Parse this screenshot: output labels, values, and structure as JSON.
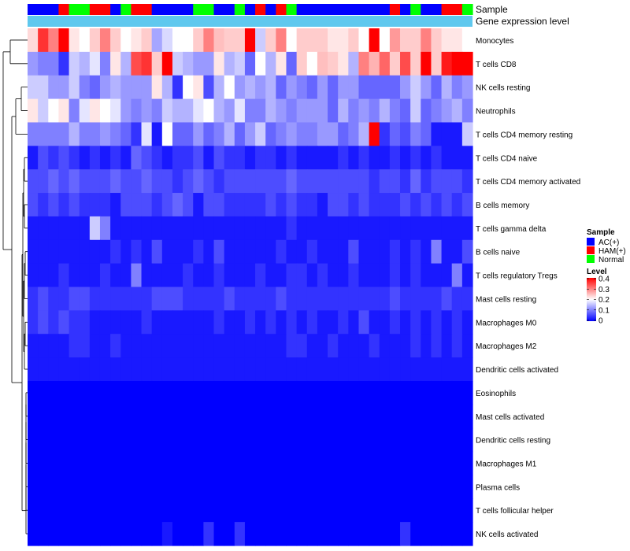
{
  "chart_data": {
    "type": "heatmap",
    "annotation_tracks": [
      "Sample",
      "Gene expression level"
    ],
    "rows": [
      "Monocytes",
      "T cells CD8",
      "NK cells resting",
      "Neutrophils",
      "T cells CD4 memory resting",
      "T cells CD4 naive",
      "T cells CD4 memory activated",
      "B cells memory",
      "T cells gamma delta",
      "B cells naive",
      "T cells regulatory  Tregs",
      "Mast cells resting",
      "Macrophages M0",
      "Macrophages M2",
      "Dendritic cells activated",
      "Eosinophils",
      "Mast cells activated",
      "Dendritic cells resting",
      "Macrophages M1",
      "Plasma cells",
      "T cells follicular helper",
      "NK cells activated"
    ],
    "sample_groups": [
      "AC",
      "AC",
      "AC",
      "HAM",
      "Normal",
      "Normal",
      "HAM",
      "HAM",
      "AC",
      "Normal",
      "HAM",
      "HAM",
      "AC",
      "AC",
      "AC",
      "AC",
      "Normal",
      "Normal",
      "AC",
      "AC",
      "Normal",
      "AC",
      "HAM",
      "AC",
      "HAM",
      "Normal",
      "AC",
      "AC",
      "AC",
      "AC",
      "AC",
      "AC",
      "AC",
      "AC",
      "AC",
      "HAM",
      "AC",
      "Normal",
      "AC",
      "AC",
      "HAM",
      "HAM",
      "Normal"
    ],
    "values": [
      [
        0.23,
        0.36,
        0.3,
        0.4,
        0.22,
        0.2,
        0.24,
        0.3,
        0.24,
        0.2,
        0.22,
        0.24,
        0.13,
        0.17,
        0.2,
        0.2,
        0.24,
        0.3,
        0.25,
        0.24,
        0.24,
        0.4,
        0.16,
        0.24,
        0.3,
        0.2,
        0.24,
        0.24,
        0.24,
        0.22,
        0.22,
        0.24,
        0.2,
        0.4,
        0.2,
        0.28,
        0.24,
        0.24,
        0.3,
        0.24,
        0.22,
        0.22,
        0.2
      ],
      [
        0.12,
        0.1,
        0.1,
        0.04,
        0.16,
        0.14,
        0.18,
        0.1,
        0.22,
        0.14,
        0.34,
        0.36,
        0.24,
        0.4,
        0.16,
        0.14,
        0.12,
        0.12,
        0.22,
        0.14,
        0.16,
        0.08,
        0.2,
        0.14,
        0.22,
        0.08,
        0.24,
        0.2,
        0.25,
        0.24,
        0.22,
        0.14,
        0.3,
        0.26,
        0.32,
        0.24,
        0.34,
        0.24,
        0.4,
        0.24,
        0.38,
        0.4,
        0.4
      ],
      [
        0.16,
        0.16,
        0.12,
        0.12,
        0.16,
        0.1,
        0.08,
        0.12,
        0.14,
        0.12,
        0.12,
        0.12,
        0.22,
        0.14,
        0.04,
        0.2,
        0.22,
        0.06,
        0.14,
        0.2,
        0.12,
        0.14,
        0.12,
        0.14,
        0.08,
        0.12,
        0.1,
        0.08,
        0.12,
        0.08,
        0.12,
        0.12,
        0.08,
        0.08,
        0.08,
        0.08,
        0.12,
        0.16,
        0.12,
        0.08,
        0.14,
        0.1,
        0.12
      ],
      [
        0.22,
        0.16,
        0.2,
        0.22,
        0.1,
        0.18,
        0.22,
        0.2,
        0.18,
        0.12,
        0.1,
        0.12,
        0.1,
        0.16,
        0.14,
        0.14,
        0.18,
        0.2,
        0.14,
        0.12,
        0.18,
        0.1,
        0.1,
        0.14,
        0.12,
        0.1,
        0.12,
        0.12,
        0.12,
        0.08,
        0.14,
        0.1,
        0.12,
        0.1,
        0.14,
        0.1,
        0.08,
        0.16,
        0.08,
        0.1,
        0.12,
        0.14,
        0.1
      ],
      [
        0.1,
        0.1,
        0.1,
        0.1,
        0.14,
        0.1,
        0.1,
        0.12,
        0.1,
        0.08,
        0.04,
        0.18,
        0.02,
        0.2,
        0.08,
        0.08,
        0.12,
        0.08,
        0.1,
        0.14,
        0.08,
        0.12,
        0.16,
        0.08,
        0.1,
        0.12,
        0.1,
        0.1,
        0.12,
        0.12,
        0.08,
        0.1,
        0.14,
        0.4,
        0.04,
        0.08,
        0.06,
        0.1,
        0.08,
        0.02,
        0.02,
        0.02,
        0.16
      ],
      [
        0.02,
        0.06,
        0.04,
        0.06,
        0.04,
        0.02,
        0.04,
        0.02,
        0.04,
        0.02,
        0.08,
        0.06,
        0.04,
        0.02,
        0.04,
        0.04,
        0.06,
        0.02,
        0.06,
        0.04,
        0.04,
        0.02,
        0.04,
        0.04,
        0.02,
        0.04,
        0.02,
        0.02,
        0.02,
        0.02,
        0.04,
        0.02,
        0.04,
        0.02,
        0.02,
        0.04,
        0.02,
        0.04,
        0.02,
        0.04,
        0.02,
        0.02,
        0.02
      ],
      [
        0.06,
        0.06,
        0.08,
        0.06,
        0.08,
        0.06,
        0.06,
        0.06,
        0.08,
        0.06,
        0.06,
        0.08,
        0.06,
        0.06,
        0.04,
        0.06,
        0.08,
        0.06,
        0.04,
        0.06,
        0.06,
        0.06,
        0.06,
        0.06,
        0.06,
        0.08,
        0.06,
        0.06,
        0.06,
        0.06,
        0.06,
        0.06,
        0.06,
        0.04,
        0.06,
        0.06,
        0.04,
        0.08,
        0.04,
        0.06,
        0.06,
        0.06,
        0.04
      ],
      [
        0.06,
        0.04,
        0.06,
        0.04,
        0.06,
        0.04,
        0.04,
        0.04,
        0.02,
        0.06,
        0.06,
        0.06,
        0.04,
        0.06,
        0.08,
        0.06,
        0.02,
        0.06,
        0.06,
        0.04,
        0.04,
        0.04,
        0.04,
        0.06,
        0.04,
        0.06,
        0.04,
        0.04,
        0.02,
        0.06,
        0.06,
        0.04,
        0.06,
        0.04,
        0.04,
        0.04,
        0.06,
        0.04,
        0.06,
        0.04,
        0.06,
        0.04,
        0.06
      ],
      [
        0.02,
        0.02,
        0.02,
        0.02,
        0.02,
        0.02,
        0.16,
        0.1,
        0.02,
        0.02,
        0.02,
        0.02,
        0.02,
        0.02,
        0.02,
        0.02,
        0.02,
        0.02,
        0.02,
        0.02,
        0.02,
        0.02,
        0.02,
        0.02,
        0.02,
        0.04,
        0.02,
        0.02,
        0.02,
        0.02,
        0.02,
        0.02,
        0.02,
        0.02,
        0.02,
        0.02,
        0.02,
        0.02,
        0.02,
        0.02,
        0.02,
        0.02,
        0.02
      ],
      [
        0.02,
        0.02,
        0.02,
        0.02,
        0.02,
        0.02,
        0.02,
        0.02,
        0.04,
        0.02,
        0.04,
        0.02,
        0.06,
        0.02,
        0.02,
        0.02,
        0.04,
        0.02,
        0.06,
        0.02,
        0.02,
        0.02,
        0.02,
        0.02,
        0.04,
        0.02,
        0.02,
        0.04,
        0.02,
        0.02,
        0.02,
        0.06,
        0.02,
        0.02,
        0.02,
        0.04,
        0.02,
        0.04,
        0.02,
        0.1,
        0.02,
        0.02,
        0.06
      ],
      [
        0.02,
        0.02,
        0.02,
        0.04,
        0.02,
        0.02,
        0.02,
        0.04,
        0.02,
        0.02,
        0.1,
        0.02,
        0.02,
        0.02,
        0.02,
        0.04,
        0.02,
        0.02,
        0.04,
        0.02,
        0.02,
        0.02,
        0.04,
        0.02,
        0.02,
        0.04,
        0.04,
        0.02,
        0.04,
        0.02,
        0.02,
        0.04,
        0.02,
        0.02,
        0.02,
        0.04,
        0.02,
        0.04,
        0.02,
        0.02,
        0.02,
        0.1,
        0.02
      ],
      [
        0.04,
        0.06,
        0.04,
        0.04,
        0.06,
        0.06,
        0.04,
        0.04,
        0.04,
        0.04,
        0.04,
        0.04,
        0.06,
        0.06,
        0.06,
        0.04,
        0.04,
        0.04,
        0.04,
        0.06,
        0.04,
        0.04,
        0.04,
        0.04,
        0.06,
        0.04,
        0.04,
        0.04,
        0.04,
        0.04,
        0.04,
        0.04,
        0.04,
        0.04,
        0.04,
        0.06,
        0.04,
        0.04,
        0.04,
        0.04,
        0.06,
        0.04,
        0.04
      ],
      [
        0.04,
        0.06,
        0.04,
        0.06,
        0.04,
        0.04,
        0.02,
        0.02,
        0.02,
        0.02,
        0.02,
        0.04,
        0.02,
        0.02,
        0.02,
        0.02,
        0.02,
        0.02,
        0.04,
        0.02,
        0.02,
        0.04,
        0.02,
        0.04,
        0.02,
        0.04,
        0.02,
        0.04,
        0.02,
        0.02,
        0.04,
        0.02,
        0.06,
        0.02,
        0.02,
        0.04,
        0.02,
        0.04,
        0.02,
        0.04,
        0.02,
        0.04,
        0.02
      ],
      [
        0.02,
        0.02,
        0.02,
        0.02,
        0.04,
        0.04,
        0.02,
        0.02,
        0.04,
        0.02,
        0.02,
        0.02,
        0.02,
        0.02,
        0.02,
        0.02,
        0.02,
        0.02,
        0.02,
        0.02,
        0.02,
        0.02,
        0.02,
        0.02,
        0.02,
        0.04,
        0.04,
        0.02,
        0.02,
        0.04,
        0.02,
        0.02,
        0.02,
        0.04,
        0.02,
        0.02,
        0.02,
        0.04,
        0.02,
        0.04,
        0.02,
        0.04,
        0.02
      ],
      [
        0.02,
        0.02,
        0.02,
        0.02,
        0.02,
        0.02,
        0.02,
        0.02,
        0.02,
        0.02,
        0.02,
        0.02,
        0.02,
        0.02,
        0.02,
        0.02,
        0.02,
        0.02,
        0.02,
        0.02,
        0.02,
        0.02,
        0.02,
        0.02,
        0.02,
        0.02,
        0.02,
        0.02,
        0.02,
        0.02,
        0.02,
        0.02,
        0.02,
        0.02,
        0.02,
        0.02,
        0.02,
        0.02,
        0.02,
        0.02,
        0.02,
        0.02,
        0.02
      ],
      [
        0,
        0,
        0,
        0,
        0,
        0,
        0,
        0,
        0,
        0,
        0,
        0,
        0,
        0,
        0,
        0,
        0,
        0,
        0,
        0,
        0,
        0,
        0,
        0,
        0,
        0,
        0,
        0,
        0,
        0,
        0,
        0,
        0,
        0,
        0,
        0,
        0,
        0,
        0,
        0,
        0,
        0,
        0
      ],
      [
        0,
        0,
        0,
        0,
        0,
        0,
        0,
        0,
        0,
        0,
        0,
        0,
        0,
        0,
        0,
        0,
        0,
        0,
        0,
        0,
        0,
        0,
        0,
        0,
        0,
        0,
        0,
        0,
        0,
        0,
        0,
        0,
        0,
        0,
        0,
        0,
        0,
        0,
        0,
        0,
        0,
        0,
        0
      ],
      [
        0,
        0,
        0,
        0,
        0,
        0,
        0,
        0,
        0,
        0,
        0,
        0,
        0,
        0,
        0,
        0,
        0,
        0,
        0,
        0,
        0,
        0,
        0,
        0,
        0,
        0,
        0,
        0,
        0,
        0,
        0,
        0,
        0,
        0,
        0,
        0,
        0,
        0,
        0,
        0,
        0,
        0,
        0
      ],
      [
        0,
        0,
        0,
        0,
        0,
        0,
        0,
        0,
        0,
        0,
        0,
        0,
        0,
        0,
        0,
        0,
        0,
        0,
        0,
        0,
        0,
        0,
        0,
        0,
        0,
        0,
        0,
        0,
        0,
        0,
        0,
        0,
        0,
        0,
        0,
        0,
        0,
        0,
        0,
        0,
        0,
        0,
        0
      ],
      [
        0,
        0,
        0,
        0,
        0,
        0,
        0,
        0,
        0,
        0,
        0,
        0,
        0,
        0,
        0,
        0,
        0,
        0,
        0,
        0,
        0,
        0,
        0,
        0,
        0,
        0,
        0,
        0,
        0,
        0,
        0,
        0,
        0,
        0,
        0,
        0,
        0,
        0,
        0,
        0,
        0,
        0,
        0
      ],
      [
        0,
        0,
        0,
        0,
        0,
        0,
        0,
        0,
        0,
        0,
        0,
        0,
        0,
        0,
        0,
        0,
        0,
        0,
        0,
        0,
        0,
        0,
        0,
        0,
        0,
        0,
        0,
        0,
        0,
        0,
        0,
        0,
        0,
        0,
        0,
        0,
        0,
        0,
        0,
        0,
        0,
        0,
        0
      ],
      [
        0,
        0,
        0,
        0,
        0,
        0,
        0,
        0,
        0,
        0,
        0,
        0,
        0,
        0.02,
        0,
        0,
        0,
        0.04,
        0,
        0,
        0.04,
        0,
        0,
        0,
        0,
        0,
        0,
        0,
        0,
        0,
        0,
        0,
        0,
        0,
        0,
        0,
        0.04,
        0,
        0,
        0,
        0,
        0,
        0
      ]
    ],
    "legend_sample": {
      "title": "Sample",
      "entries": [
        {
          "key": "AC",
          "label": "AC(+)",
          "color": "#0000ff"
        },
        {
          "key": "HAM",
          "label": "HAM(+)",
          "color": "#ff0000"
        },
        {
          "key": "Normal",
          "label": "Normal",
          "color": "#00ff00"
        }
      ]
    },
    "legend_level": {
      "title": "Level",
      "ticks": [
        "0.4",
        "0.3",
        "0.2",
        "0.1",
        "0"
      ],
      "range": [
        0,
        0.4
      ]
    },
    "colors": {
      "low": "#0000ff",
      "mid": "#ffffff",
      "high": "#ff0000",
      "expression_track": "#5fc8ee",
      "dendrogram": "#000000"
    }
  }
}
